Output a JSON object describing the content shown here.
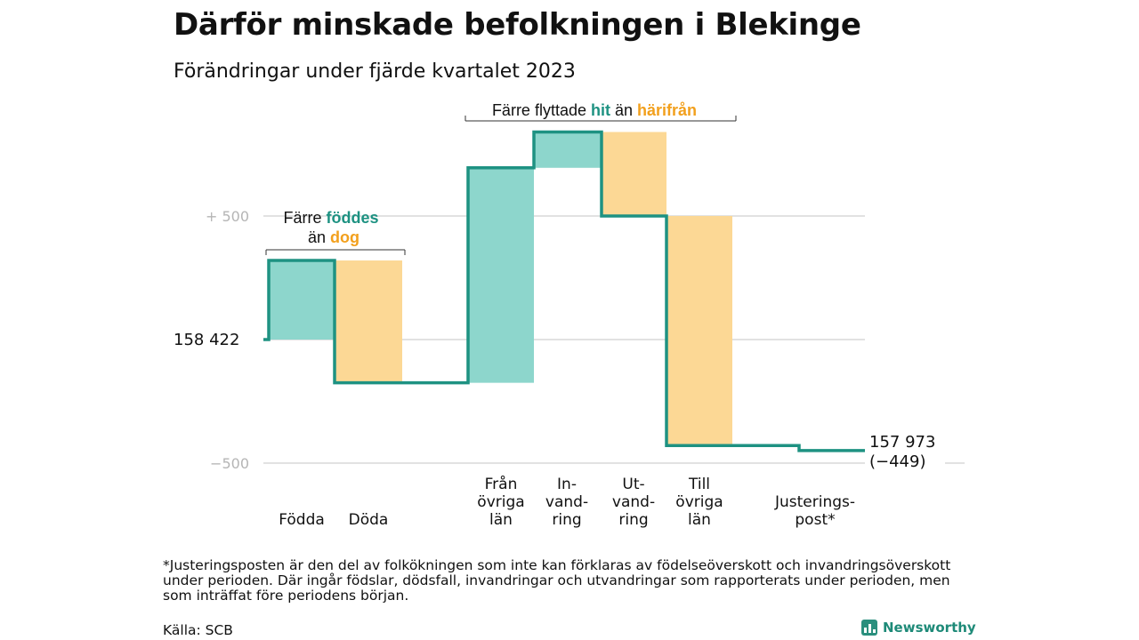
{
  "title": "Därför minskade befolkningen i Blekinge",
  "subtitle": "Förändringar under fjärde kvartalet 2023",
  "colors": {
    "teal": "#8dd6cc",
    "orange": "#fcd895",
    "line": "#1e9282",
    "grid": "#e2e2e2",
    "teal_text": "#1e9282",
    "orange_text": "#f2a01d"
  },
  "chart_data": {
    "type": "waterfall",
    "baseline_label": "158  422",
    "baseline": 158422,
    "end_label_1": "157 973",
    "end_label_2": "(−449)",
    "y_ticks": [
      {
        "label": "+  500",
        "value": 500
      },
      {
        "label": "−500",
        "value": -500
      }
    ],
    "steps": [
      {
        "category": "Födda",
        "lines": [
          "Födda"
        ],
        "change": 320,
        "color": "teal"
      },
      {
        "category": "Döda",
        "lines": [
          "Döda"
        ],
        "change": -495,
        "color": "orange"
      },
      {
        "category": "Från övriga län",
        "lines": [
          "Från",
          "övriga",
          "län"
        ],
        "change": 870,
        "color": "teal"
      },
      {
        "category": "In-vandring",
        "lines": [
          "In-",
          "vand-",
          "ring"
        ],
        "change": 145,
        "color": "teal"
      },
      {
        "category": "Ut-vandring",
        "lines": [
          "Ut-",
          "vand-",
          "ring"
        ],
        "change": -340,
        "color": "orange"
      },
      {
        "category": "Till övriga län",
        "lines": [
          "Till",
          "övriga",
          "län"
        ],
        "change": -929,
        "color": "orange"
      },
      {
        "category": "Justerings-post*",
        "lines": [
          "Justerings-",
          "post*"
        ],
        "change": -20,
        "color": "line"
      }
    ],
    "annotations": [
      {
        "id": "births",
        "line1_a": "Färre ",
        "line1_b": "föddes",
        "line2_a": "än ",
        "line2_b": "dog"
      },
      {
        "id": "migration",
        "text_a": "Färre flyttade ",
        "text_b": "hit",
        "text_c": " än ",
        "text_d": "härifrån"
      }
    ]
  },
  "footnote": "*Justeringsposten är den del av folkökningen som inte kan förklaras av födelseöverskott och invandringsöverskott under perioden. Där ingår födslar, dödsfall, invandringar och utvandringar som rapporterats under perioden, men som inträffat före periodens början.",
  "source": "Källa: SCB",
  "brand": "Newsworthy"
}
